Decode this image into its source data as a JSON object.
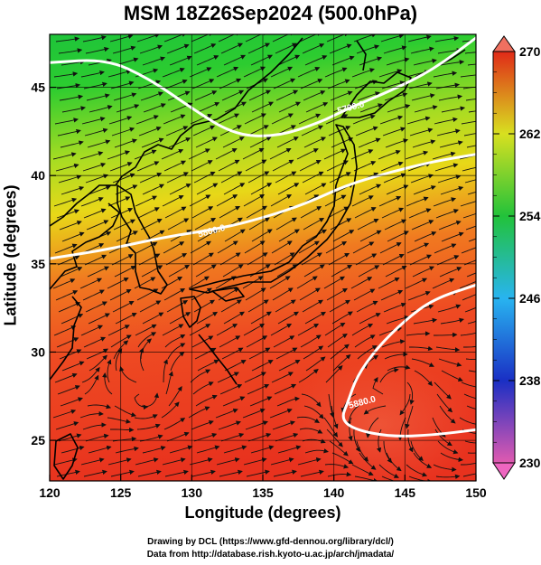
{
  "title": "MSM 18Z26Sep2024 (500.0hPa)",
  "x_axis": {
    "label": "Longitude (degrees)",
    "ticks": [
      120,
      125,
      130,
      135,
      140,
      145,
      150
    ]
  },
  "y_axis": {
    "label": "Latitude  (degrees)",
    "ticks": [
      25,
      30,
      35,
      40,
      45
    ]
  },
  "colorbar": {
    "ticks": [
      230,
      238,
      246,
      254,
      262,
      270
    ],
    "min": 230,
    "max": 270,
    "colors": [
      "#e05ab0",
      "#1a2fc4",
      "#28b4f0",
      "#22c23a",
      "#d8e020",
      "#e02a18"
    ]
  },
  "contours": [
    {
      "label": "5700.0",
      "points": [
        [
          120,
          46.4
        ],
        [
          124,
          46.6
        ],
        [
          127,
          45.5
        ],
        [
          130,
          43.8
        ],
        [
          133,
          42.3
        ],
        [
          136,
          42.2
        ],
        [
          139,
          43.0
        ],
        [
          141,
          43.8
        ],
        [
          144,
          44.8
        ],
        [
          147,
          46.0
        ],
        [
          150,
          47.8
        ]
      ]
    },
    {
      "label": "5800.0",
      "points": [
        [
          120,
          35.3
        ],
        [
          124,
          35.8
        ],
        [
          128,
          36.5
        ],
        [
          132,
          37.0
        ],
        [
          135,
          37.6
        ],
        [
          138,
          38.4
        ],
        [
          141,
          39.5
        ],
        [
          144,
          40.2
        ],
        [
          147,
          40.8
        ],
        [
          150,
          41.2
        ]
      ]
    },
    {
      "label": "5880.0",
      "points": [
        [
          150,
          33.8
        ],
        [
          147,
          33.0
        ],
        [
          145,
          31.8
        ],
        [
          143,
          30.2
        ],
        [
          141.6,
          28.6
        ],
        [
          141.0,
          27.2
        ],
        [
          140.5,
          26.2
        ],
        [
          141.5,
          25.6
        ],
        [
          144,
          25.2
        ],
        [
          147,
          25.3
        ],
        [
          150,
          25.6
        ]
      ]
    }
  ],
  "contour_labels": [
    {
      "text": "5700.0",
      "lon": 140.3,
      "lat": 43.5
    },
    {
      "text": "5800.0",
      "lon": 130.5,
      "lat": 36.5
    },
    {
      "text": "5880.0",
      "lon": 141.1,
      "lat": 26.8
    }
  ],
  "credits": {
    "line1": "Drawing by DCL (https://www.gfd-dennou.org/library/dcl/)",
    "line2": "Data from http://database.rish.kyoto-u.ac.jp/arch/jmadata/"
  }
}
